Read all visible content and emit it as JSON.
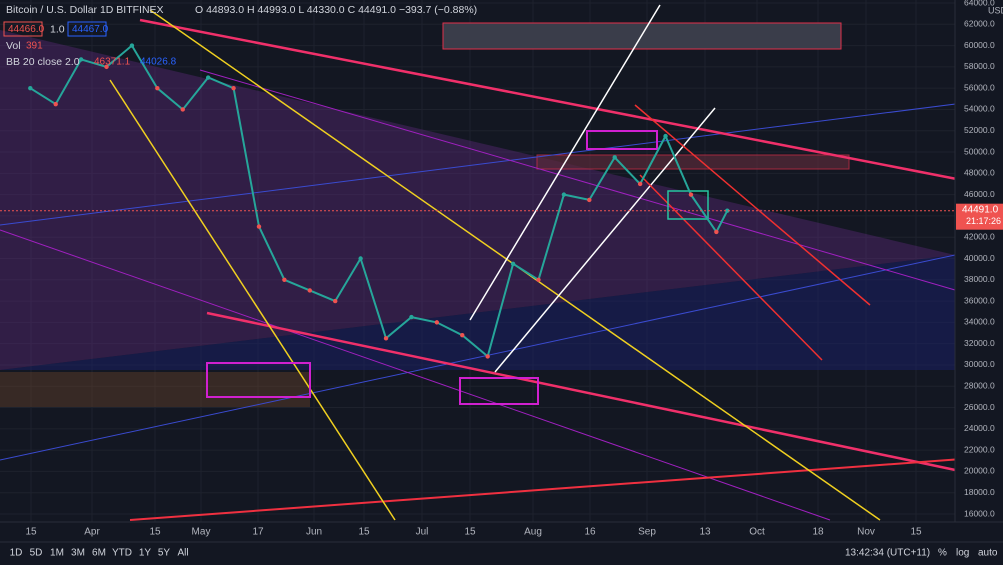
{
  "header": {
    "symbol": "Bitcoin / U.S. Dollar  1D  BITFINEX",
    "ohlc": "O 44893.0  H 44993.0  L 44330.0  C 44491.0  −393.7 (−0.88%)",
    "sell": "44466.0",
    "qty": "1.0",
    "buy": "44467.0",
    "vol_label": "Vol",
    "vol_value": "391",
    "bb_label": "BB 20 close 2.0",
    "bb_upper": "46371.1",
    "bb_lower": "44026.8"
  },
  "price_axis": {
    "currency": "USD",
    "current_price": "44491.0",
    "countdown": "21:17:26"
  },
  "time_axis": [
    "15",
    "Apr",
    "15",
    "May",
    "17",
    "Jun",
    "15",
    "Jul",
    "15",
    "Aug",
    "16",
    "Sep",
    "13",
    "Oct",
    "18",
    "Nov",
    "15"
  ],
  "toolbar": {
    "ranges": [
      "1D",
      "5D",
      "1M",
      "3M",
      "6M",
      "YTD",
      "1Y",
      "5Y",
      "All"
    ],
    "clock": "13:42:34 (UTC+11)",
    "percent": "%",
    "log": "log",
    "auto": "auto"
  },
  "chart_data": {
    "type": "line",
    "x": [
      "Mar 15",
      "Mar 22",
      "Mar 29",
      "Apr 5",
      "Apr 12",
      "Apr 19",
      "Apr 26",
      "May 3",
      "May 10",
      "May 17",
      "May 24",
      "May 31",
      "Jun 7",
      "Jun 14",
      "Jun 21",
      "Jun 28",
      "Jul 5",
      "Jul 12",
      "Jul 19",
      "Jul 26",
      "Aug 2",
      "Aug 9",
      "Aug 16",
      "Aug 23",
      "Aug 30",
      "Sep 6",
      "Sep 13",
      "Sep 20",
      "Sep 23"
    ],
    "series": [
      {
        "name": "Bitcoin / U.S. Dollar",
        "color": "#26a69a",
        "values": [
          56000,
          54500,
          58700,
          58000,
          60000,
          56000,
          54000,
          57000,
          56000,
          43000,
          38000,
          37000,
          36000,
          40000,
          32500,
          34500,
          34000,
          32800,
          30800,
          39500,
          38000,
          46000,
          45500,
          49500,
          47000,
          51500,
          46000,
          42500,
          44491
        ]
      }
    ],
    "ylim": [
      16000,
      64000
    ],
    "yticks": [
      {
        "value": 16000,
        "label": "16000.0"
      },
      {
        "value": 18000,
        "label": "18000.0"
      },
      {
        "value": 20000,
        "label": "20000.0"
      },
      {
        "value": 22000,
        "label": "22000.0"
      },
      {
        "value": 24000,
        "label": "24000.0"
      },
      {
        "value": 26000,
        "label": "26000.0"
      },
      {
        "value": 28000,
        "label": "28000.0"
      },
      {
        "value": 30000,
        "label": "30000.0"
      },
      {
        "value": 32000,
        "label": "32000.0"
      },
      {
        "value": 34000,
        "label": "34000.0"
      },
      {
        "value": 36000,
        "label": "36000.0"
      },
      {
        "value": 38000,
        "label": "38000.0"
      },
      {
        "value": 40000,
        "label": "40000.0"
      },
      {
        "value": 42000,
        "label": "42000.0"
      },
      {
        "value": 44000,
        "label": "44000.0"
      },
      {
        "value": 46000,
        "label": "46000.0"
      },
      {
        "value": 48000,
        "label": "48000.0"
      },
      {
        "value": 50000,
        "label": "50000.0"
      },
      {
        "value": 52000,
        "label": "52000.0"
      },
      {
        "value": 54000,
        "label": "54000.0"
      },
      {
        "value": 56000,
        "label": "56000.0"
      },
      {
        "value": 58000,
        "label": "58000.0"
      },
      {
        "value": 60000,
        "label": "60000.0"
      },
      {
        "value": 62000,
        "label": "62000.0"
      },
      {
        "value": 64000,
        "label": "64000.0"
      }
    ],
    "grid": true
  }
}
